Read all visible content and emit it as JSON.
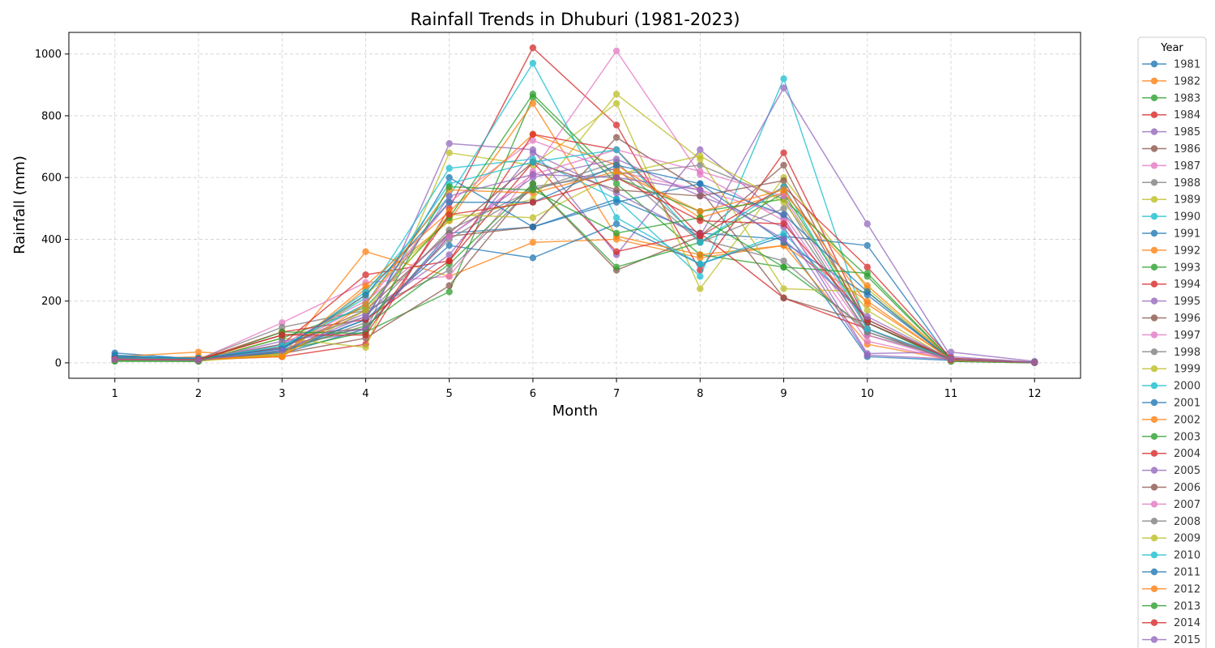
{
  "chart_data": {
    "type": "line",
    "title": "Rainfall Trends in Dhuburi (1981-2023)",
    "xlabel": "Month",
    "ylabel": "Rainfall (mm)",
    "x": [
      1,
      2,
      3,
      4,
      5,
      6,
      7,
      8,
      9,
      10,
      11,
      12
    ],
    "x_ticks": [
      "1",
      "2",
      "3",
      "4",
      "5",
      "6",
      "7",
      "8",
      "9",
      "10",
      "11",
      "12"
    ],
    "y_ticks": [
      "0",
      "200",
      "400",
      "600",
      "800",
      "1000"
    ],
    "ylim": [
      -50,
      1070
    ],
    "grid": true,
    "legend_title": "Year",
    "legend_position": "outside-right",
    "colors": [
      "#1f77b4",
      "#ff7f0e",
      "#2ca02c",
      "#d62728",
      "#9467bd",
      "#8c564b",
      "#e377c2",
      "#7f7f7f",
      "#bcbd22",
      "#17becf"
    ],
    "series": [
      {
        "name": "1981",
        "values": [
          32,
          12,
          30,
          110,
          420,
          440,
          530,
          420,
          400,
          20,
          8,
          2
        ]
      },
      {
        "name": "1982",
        "values": [
          20,
          35,
          20,
          360,
          280,
          390,
          400,
          340,
          380,
          60,
          10,
          1
        ]
      },
      {
        "name": "1983",
        "values": [
          5,
          5,
          40,
          100,
          230,
          860,
          580,
          350,
          310,
          110,
          5,
          0
        ]
      },
      {
        "name": "1984",
        "values": [
          15,
          10,
          20,
          60,
          500,
          1020,
          770,
          300,
          680,
          130,
          8,
          1
        ]
      },
      {
        "name": "1985",
        "values": [
          10,
          8,
          60,
          100,
          710,
          690,
          350,
          690,
          470,
          30,
          35,
          5
        ]
      },
      {
        "name": "1986",
        "values": [
          12,
          15,
          30,
          80,
          250,
          580,
          300,
          410,
          640,
          110,
          5,
          2
        ]
      },
      {
        "name": "1987",
        "values": [
          8,
          10,
          130,
          260,
          280,
          620,
          1010,
          610,
          460,
          70,
          10,
          1
        ]
      },
      {
        "name": "1988",
        "values": [
          15,
          12,
          115,
          170,
          300,
          570,
          610,
          640,
          530,
          90,
          15,
          1
        ]
      },
      {
        "name": "1989",
        "values": [
          10,
          8,
          80,
          50,
          680,
          640,
          840,
          240,
          600,
          240,
          10,
          2
        ]
      },
      {
        "name": "1990",
        "values": [
          20,
          15,
          50,
          210,
          630,
          660,
          530,
          280,
          920,
          110,
          12,
          2
        ]
      },
      {
        "name": "1991",
        "values": [
          25,
          10,
          40,
          140,
          380,
          340,
          450,
          320,
          410,
          380,
          8,
          1
        ]
      },
      {
        "name": "1992",
        "values": [
          10,
          20,
          20,
          240,
          460,
          840,
          410,
          350,
          380,
          200,
          10,
          1
        ]
      },
      {
        "name": "1993",
        "values": [
          8,
          6,
          40,
          120,
          320,
          580,
          310,
          390,
          550,
          130,
          5,
          0
        ]
      },
      {
        "name": "1994",
        "values": [
          18,
          12,
          60,
          285,
          330,
          650,
          360,
          420,
          210,
          110,
          10,
          1
        ]
      },
      {
        "name": "1995",
        "values": [
          12,
          8,
          50,
          160,
          350,
          680,
          550,
          410,
          890,
          450,
          20,
          2
        ]
      },
      {
        "name": "1996",
        "values": [
          15,
          10,
          90,
          110,
          410,
          440,
          730,
          560,
          210,
          130,
          12,
          2
        ]
      },
      {
        "name": "1997",
        "values": [
          10,
          12,
          45,
          190,
          520,
          720,
          620,
          560,
          480,
          90,
          8,
          1
        ]
      },
      {
        "name": "1998",
        "values": [
          14,
          10,
          35,
          130,
          400,
          560,
          650,
          400,
          330,
          100,
          10,
          1
        ]
      },
      {
        "name": "1999",
        "values": [
          12,
          8,
          30,
          220,
          460,
          530,
          870,
          660,
          240,
          230,
          8,
          1
        ]
      },
      {
        "name": "2000",
        "values": [
          20,
          15,
          40,
          230,
          540,
          970,
          470,
          320,
          420,
          140,
          10,
          2
        ]
      },
      {
        "name": "2001",
        "values": [
          15,
          10,
          35,
          140,
          600,
          440,
          520,
          580,
          390,
          220,
          10,
          1
        ]
      },
      {
        "name": "2002",
        "values": [
          10,
          12,
          25,
          250,
          490,
          740,
          640,
          470,
          550,
          250,
          12,
          1
        ]
      },
      {
        "name": "2003",
        "values": [
          8,
          5,
          80,
          180,
          470,
          870,
          600,
          490,
          530,
          280,
          10,
          1
        ]
      },
      {
        "name": "2004",
        "values": [
          12,
          10,
          100,
          140,
          330,
          740,
          690,
          410,
          570,
          310,
          15,
          2
        ]
      },
      {
        "name": "2005",
        "values": [
          10,
          8,
          70,
          110,
          410,
          600,
          660,
          540,
          440,
          25,
          12,
          1
        ]
      },
      {
        "name": "2006",
        "values": [
          14,
          10,
          50,
          170,
          420,
          650,
          560,
          540,
          590,
          130,
          10,
          1
        ]
      },
      {
        "name": "2007",
        "values": [
          12,
          12,
          60,
          200,
          410,
          610,
          690,
          620,
          540,
          110,
          8,
          1
        ]
      },
      {
        "name": "2008",
        "values": [
          10,
          10,
          60,
          150,
          430,
          560,
          630,
          390,
          500,
          100,
          10,
          1
        ]
      },
      {
        "name": "2009",
        "values": [
          8,
          6,
          25,
          170,
          480,
          470,
          610,
          670,
          520,
          170,
          8,
          1
        ]
      },
      {
        "name": "2010",
        "values": [
          15,
          12,
          55,
          190,
          580,
          650,
          690,
          390,
          570,
          110,
          12,
          2
        ]
      },
      {
        "name": "2011",
        "values": [
          20,
          15,
          45,
          220,
          520,
          520,
          640,
          580,
          480,
          230,
          10,
          1
        ]
      },
      {
        "name": "2012",
        "values": [
          10,
          10,
          20,
          190,
          560,
          550,
          620,
          490,
          560,
          190,
          12,
          1
        ]
      },
      {
        "name": "2013",
        "values": [
          6,
          5,
          100,
          95,
          570,
          560,
          420,
          470,
          310,
          290,
          10,
          1
        ]
      },
      {
        "name": "2014",
        "values": [
          12,
          10,
          90,
          90,
          480,
          520,
          600,
          460,
          450,
          140,
          10,
          1
        ]
      },
      {
        "name": "2015",
        "values": [
          10,
          8,
          40,
          150,
          540,
          610,
          600,
          560,
          400,
          150,
          12,
          1
        ]
      }
    ]
  }
}
